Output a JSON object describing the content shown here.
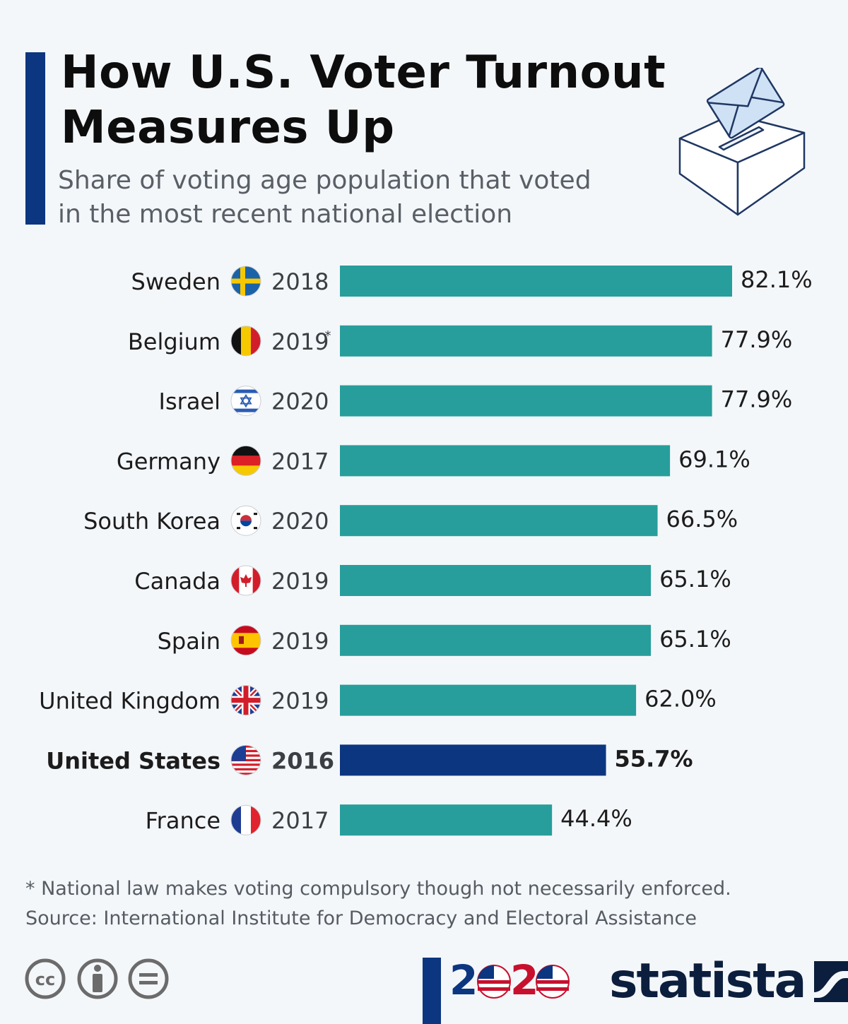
{
  "header": {
    "title_line1": "How U.S. Voter Turnout",
    "title_line2": "Measures Up",
    "subtitle_line1": "Share of voting age population that voted",
    "subtitle_line2": "in the most recent national election"
  },
  "icons": {
    "ballot": "ballot-box-icon",
    "cc": "creative-commons-icon",
    "by": "attribution-icon",
    "nd": "no-derivatives-icon",
    "brand_2020": "2020-election-logo",
    "statista": "statista-logo"
  },
  "colors": {
    "bar": "#279e9b",
    "bar_highlight": "#0c3680",
    "accent": "#0c3680"
  },
  "chart_data": {
    "type": "bar",
    "orientation": "horizontal",
    "xlim": [
      0,
      100
    ],
    "value_suffix": "%",
    "rows": [
      {
        "country": "Sweden",
        "year": "2018",
        "asterisk": "",
        "value": 82.1,
        "label": "82.1%",
        "flag": "sweden-flag-icon",
        "highlight": false
      },
      {
        "country": "Belgium",
        "year": "2019",
        "asterisk": "*",
        "value": 77.9,
        "label": "77.9%",
        "flag": "belgium-flag-icon",
        "highlight": false
      },
      {
        "country": "Israel",
        "year": "2020",
        "asterisk": "",
        "value": 77.9,
        "label": "77.9%",
        "flag": "israel-flag-icon",
        "highlight": false
      },
      {
        "country": "Germany",
        "year": "2017",
        "asterisk": "",
        "value": 69.1,
        "label": "69.1%",
        "flag": "germany-flag-icon",
        "highlight": false
      },
      {
        "country": "South Korea",
        "year": "2020",
        "asterisk": "",
        "value": 66.5,
        "label": "66.5%",
        "flag": "south-korea-flag-icon",
        "highlight": false
      },
      {
        "country": "Canada",
        "year": "2019",
        "asterisk": "",
        "value": 65.1,
        "label": "65.1%",
        "flag": "canada-flag-icon",
        "highlight": false
      },
      {
        "country": "Spain",
        "year": "2019",
        "asterisk": "",
        "value": 65.1,
        "label": "65.1%",
        "flag": "spain-flag-icon",
        "highlight": false
      },
      {
        "country": "United Kingdom",
        "year": "2019",
        "asterisk": "",
        "value": 62.0,
        "label": "62.0%",
        "flag": "uk-flag-icon",
        "highlight": false
      },
      {
        "country": "United States",
        "year": "2016",
        "asterisk": "",
        "value": 55.7,
        "label": "55.7%",
        "flag": "usa-flag-icon",
        "highlight": true
      },
      {
        "country": "France",
        "year": "2017",
        "asterisk": "",
        "value": 44.4,
        "label": "44.4%",
        "flag": "france-flag-icon",
        "highlight": false
      }
    ]
  },
  "footer": {
    "note": "* National law makes voting compulsory though not necessarily enforced.",
    "source": "Source: International Institute for Democracy and Electoral Assistance",
    "brand_left": "2",
    "brand_right": "2",
    "brand_name": "statista"
  }
}
